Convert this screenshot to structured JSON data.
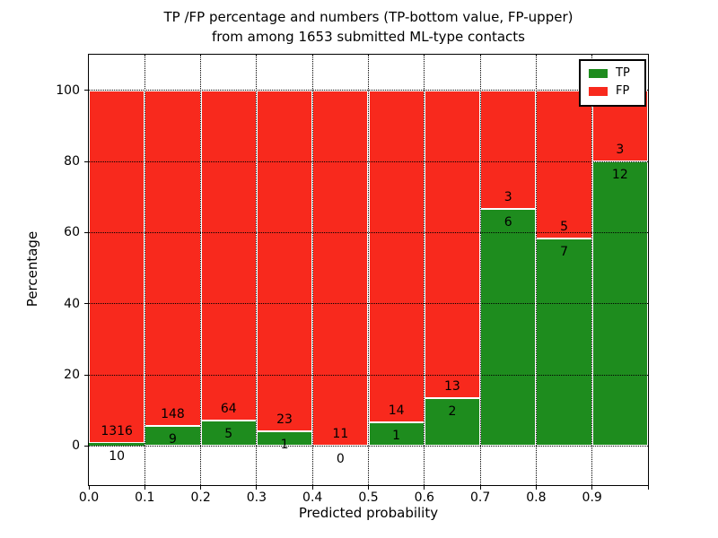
{
  "title": {
    "line1": "TP /FP percentage and numbers (TP-bottom value, FP-upper)",
    "line2": "from among 1653 submitted ML-type contacts"
  },
  "axes": {
    "xlabel": "Predicted probability",
    "ylabel": "Percentage"
  },
  "legend": {
    "entries": [
      {
        "label": "TP",
        "color": "#1e8c1e"
      },
      {
        "label": "FP",
        "color": "#f8291d"
      }
    ],
    "location": "upper right"
  },
  "chart_data": {
    "type": "bar",
    "stacked": true,
    "normalized_to_percent": true,
    "title": "TP /FP percentage and numbers (TP-bottom value, FP-upper) from among 1653 submitted ML-type contacts",
    "xlabel": "Predicted probability",
    "ylabel": "Percentage",
    "xlim": [
      0.0,
      1.0
    ],
    "ylim": [
      -11,
      110
    ],
    "grid": "dotted black, horizontal at y ticks and vertical at x ticks, drawn over bars",
    "bar_edge_color": "#ffffff",
    "bin_width": 0.1,
    "bin_starts": [
      0.0,
      0.1,
      0.2,
      0.3,
      0.4,
      0.5,
      0.6,
      0.7,
      0.8,
      0.9
    ],
    "x_tick_labels": [
      "0.0",
      "0.1",
      "0.2",
      "0.3",
      "0.4",
      "0.5",
      "0.6",
      "0.7",
      "0.8",
      "0.9"
    ],
    "y_tick_values": [
      0,
      20,
      40,
      60,
      80,
      100
    ],
    "y_tick_labels": [
      "0",
      "20",
      "40",
      "60",
      "80",
      "100"
    ],
    "series": [
      {
        "name": "TP",
        "color": "#1e8c1e",
        "counts": [
          10,
          9,
          5,
          1,
          0,
          1,
          2,
          6,
          7,
          12
        ],
        "percents": [
          0.75,
          5.73,
          7.25,
          4.17,
          0.0,
          6.67,
          13.33,
          66.67,
          58.33,
          80.0
        ]
      },
      {
        "name": "FP",
        "color": "#f8291d",
        "counts": [
          1316,
          148,
          64,
          23,
          11,
          14,
          13,
          3,
          5,
          3
        ],
        "percents": [
          99.25,
          94.27,
          92.75,
          95.83,
          100.0,
          93.33,
          86.67,
          33.33,
          41.67,
          20.0
        ]
      }
    ],
    "total_contacts": 1653,
    "annotation_rule": "TP count printed just below the TP/FP boundary, FP count just above it"
  }
}
